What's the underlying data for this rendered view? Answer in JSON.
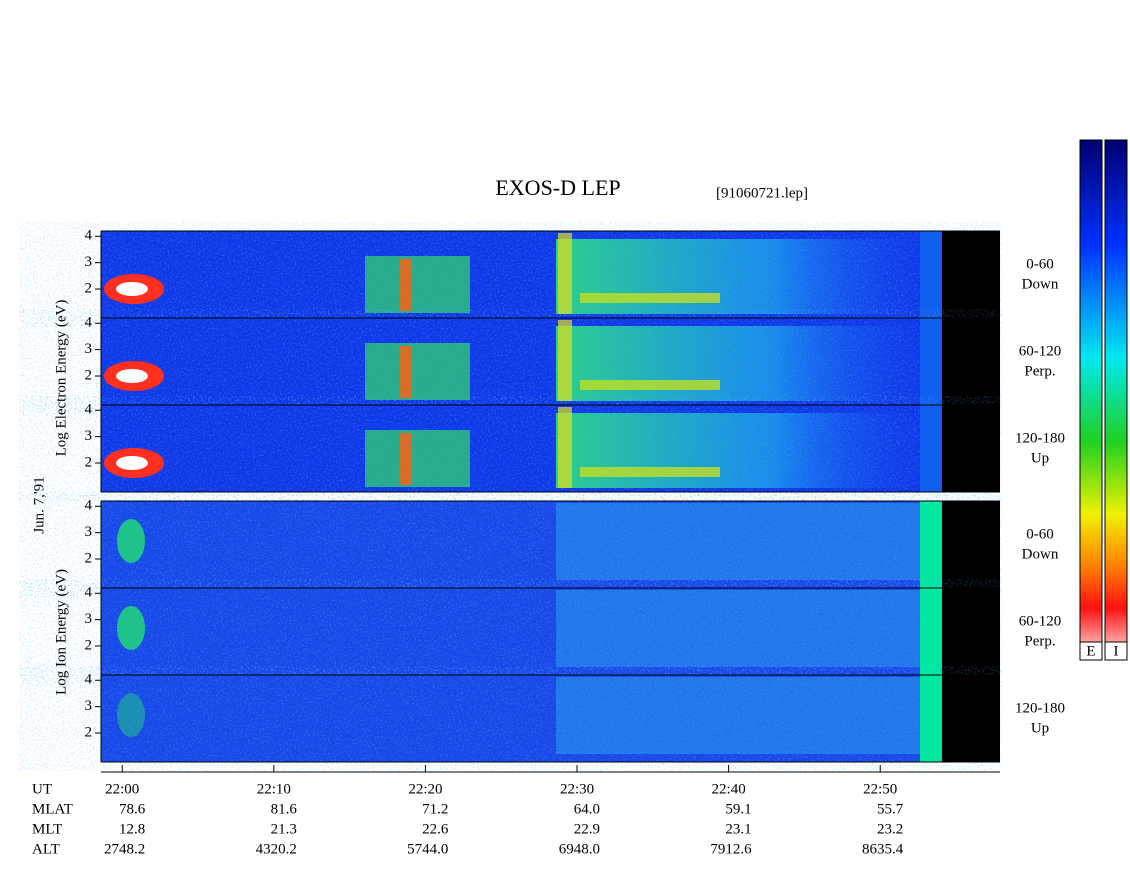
{
  "header": {
    "title": "EXOS-D LEP",
    "file": "[91060721.lep]",
    "date": "Jun. 7,'91"
  },
  "ylim": [
    0.9,
    4.2
  ],
  "yticks": [
    2,
    3,
    4
  ],
  "groups": [
    {
      "label": "Log Electron Energy (eV)",
      "panels": [
        {
          "label": [
            "0-60",
            "Down"
          ]
        },
        {
          "label": [
            "60-120",
            "Perp."
          ]
        },
        {
          "label": [
            "120-180",
            "Up"
          ]
        }
      ]
    },
    {
      "label": "Log Ion Energy (eV)",
      "panels": [
        {
          "label": [
            "0-60",
            "Down"
          ]
        },
        {
          "label": [
            "60-120",
            "Perp."
          ]
        },
        {
          "label": [
            "120-180",
            "Up"
          ]
        }
      ]
    }
  ],
  "time_axis": {
    "label": "UT",
    "xlim": [
      -1.4,
      57.9
    ],
    "xticks": [
      {
        "value": 0,
        "label": "22:00"
      },
      {
        "value": 10,
        "label": "22:10"
      },
      {
        "value": 20,
        "label": "22:20"
      },
      {
        "value": 30,
        "label": "22:30"
      },
      {
        "value": 40,
        "label": "22:40"
      },
      {
        "value": 50,
        "label": "22:50"
      }
    ]
  },
  "ephemeris": [
    {
      "label": "MLAT",
      "values": [
        "78.6",
        "81.6",
        "71.2",
        "64.0",
        "59.1",
        "55.7"
      ]
    },
    {
      "label": "MLT",
      "values": [
        "12.8",
        "21.3",
        "22.6",
        "22.9",
        "23.1",
        "23.2"
      ]
    },
    {
      "label": "ALT",
      "values": [
        "2748.2",
        "4320.2",
        "5744.0",
        "6948.0",
        "7912.6",
        "8635.4"
      ]
    }
  ],
  "colorbars": [
    "E",
    "I"
  ]
}
